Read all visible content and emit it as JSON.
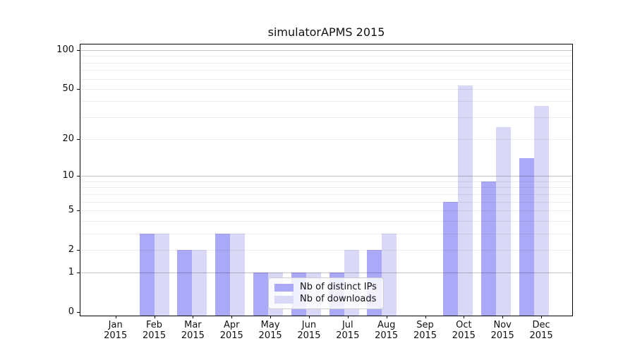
{
  "chart_data": {
    "type": "bar",
    "title": "simulatorAPMS 2015",
    "categories": [
      "Jan",
      "Feb",
      "Mar",
      "Apr",
      "May",
      "Jun",
      "Jul",
      "Aug",
      "Sep",
      "Oct",
      "Nov",
      "Dec"
    ],
    "x_tick_year": "2015",
    "series": [
      {
        "name": "Nb of distinct IPs",
        "color": "#a9a9f7",
        "values": [
          0,
          3,
          2,
          3,
          1,
          1,
          1,
          2,
          0,
          6,
          9,
          14
        ]
      },
      {
        "name": "Nb of downloads",
        "color": "#d9d9f7",
        "values": [
          0,
          3,
          2,
          3,
          1,
          1,
          2,
          3,
          0,
          53,
          25,
          37
        ]
      }
    ],
    "y_axis": {
      "scale": "log10(1+y)",
      "tick_values": [
        0,
        1,
        2,
        5,
        10,
        20,
        50,
        100
      ],
      "major_gridlines": [
        1,
        10,
        100
      ],
      "minor_gridlines": [
        2,
        3,
        4,
        5,
        6,
        7,
        8,
        9,
        20,
        30,
        40,
        50,
        60,
        70,
        80,
        90
      ],
      "ylim": [
        0,
        112
      ]
    },
    "legend": {
      "position": "lower center",
      "entries": [
        "Nb of distinct IPs",
        "Nb of downloads"
      ]
    },
    "grid": "on",
    "colors": {
      "axis": "#000000",
      "text": "#111111"
    }
  }
}
